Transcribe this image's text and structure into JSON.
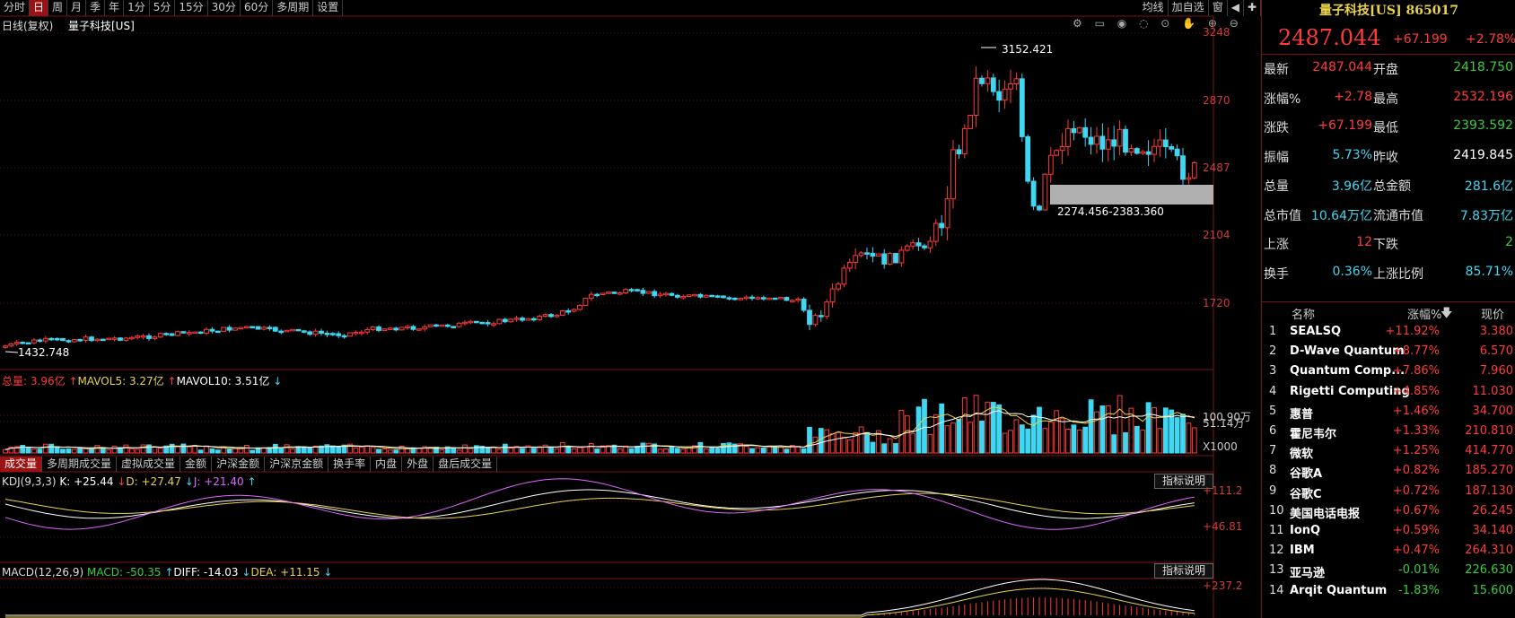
{
  "toolbar": {
    "periods": [
      "分时",
      "日",
      "周",
      "月",
      "季",
      "年",
      "1分",
      "5分",
      "15分",
      "30分",
      "60分",
      "多周期",
      "设置"
    ],
    "active": "日",
    "right_buttons": [
      "均线",
      "加自选",
      "窗"
    ]
  },
  "chart_header": {
    "mode": "日线(复权)",
    "title": "量子科技[US]"
  },
  "price_axis": [
    "3248",
    "2870",
    "2487",
    "2104",
    "1720"
  ],
  "annotations": {
    "high": "3152.421",
    "low": "1432.748",
    "range": "2274.456-2383.360"
  },
  "volume": {
    "label": "总量",
    "value": "3.96亿",
    "mavol5_label": "MAVOL5:",
    "mavol5": "3.27亿",
    "mavol10_label": "MAVOL10:",
    "mavol10": "3.51亿",
    "axis": [
      "100.90万",
      "51.14万",
      "X1000"
    ]
  },
  "volume_tabs": [
    "成交量",
    "多周期成交量",
    "虚拟成交量",
    "金额",
    "沪深金额",
    "沪深京金额",
    "换手率",
    "内盘",
    "外盘",
    "盘后成交量"
  ],
  "kdj": {
    "label": "KDJ(9,3,3)",
    "k": "K: +25.44",
    "d": "D: +27.47",
    "j": "J: +21.40",
    "axis": [
      "+111.2",
      "+46.81"
    ],
    "explain": "指标说明"
  },
  "macd": {
    "label": "MACD(12,26,9)",
    "macd": "MACD: -50.35",
    "diff": "DIFF: -14.03",
    "dea": "DEA: +11.15",
    "axis": [
      "+237.2"
    ],
    "explain": "指标说明"
  },
  "quote": {
    "title": "量子科技[US] 865017",
    "price": "2487.044",
    "change": "+67.199",
    "pct": "+2.78%",
    "rows": [
      {
        "l": "最新",
        "v": "2487.044",
        "l2": "开盘",
        "v2": "2418.750"
      },
      {
        "l": "涨幅%",
        "v": "+2.78",
        "l2": "最高",
        "v2": "2532.196"
      },
      {
        "l": "涨跌",
        "v": "+67.199",
        "l2": "最低",
        "v2": "2393.592"
      },
      {
        "l": "振幅",
        "v": "5.73%",
        "l2": "昨收",
        "v2": "2419.845"
      },
      {
        "l": "总量",
        "v": "3.96亿",
        "l2": "总金额",
        "v2": "281.6亿"
      },
      {
        "l": "总市值",
        "v": "10.64万亿",
        "l2": "流通市值",
        "v2": "7.83万亿"
      },
      {
        "l": "上涨",
        "v": "12",
        "l2": "下跌",
        "v2": "2"
      },
      {
        "l": "换手",
        "v": "0.36%",
        "l2": "上涨比例",
        "v2": "85.71%"
      }
    ]
  },
  "list": {
    "headers": [
      "名称",
      "涨幅%",
      "现价"
    ],
    "rows": [
      {
        "n": "1",
        "name": "SEALSQ",
        "pct": "+11.92%",
        "price": "3.380"
      },
      {
        "n": "2",
        "name": "D-Wave Quantum",
        "pct": "+8.77%",
        "price": "6.570"
      },
      {
        "n": "3",
        "name": "Quantum Comp...",
        "pct": "+7.86%",
        "price": "7.960"
      },
      {
        "n": "4",
        "name": "Rigetti Computing",
        "pct": "+4.85%",
        "price": "11.030"
      },
      {
        "n": "5",
        "name": "惠普",
        "pct": "+1.46%",
        "price": "34.700"
      },
      {
        "n": "6",
        "name": "霍尼韦尔",
        "pct": "+1.33%",
        "price": "210.810"
      },
      {
        "n": "7",
        "name": "微软",
        "pct": "+1.25%",
        "price": "414.770"
      },
      {
        "n": "8",
        "name": "谷歌A",
        "pct": "+0.82%",
        "price": "185.270"
      },
      {
        "n": "9",
        "name": "谷歌C",
        "pct": "+0.72%",
        "price": "187.130"
      },
      {
        "n": "10",
        "name": "美国电话电报",
        "pct": "+0.67%",
        "price": "26.245"
      },
      {
        "n": "11",
        "name": "IonQ",
        "pct": "+0.59%",
        "price": "34.140"
      },
      {
        "n": "12",
        "name": "IBM",
        "pct": "+0.47%",
        "price": "264.310"
      },
      {
        "n": "13",
        "name": "亚马逊",
        "pct": "-0.01%",
        "price": "226.630"
      },
      {
        "n": "14",
        "name": "Arqit Quantum",
        "pct": "-1.83%",
        "price": "15.600"
      }
    ]
  },
  "colors": {
    "up": "#ff3b3b",
    "down": "#3fd7f2",
    "grid": "#5a1010",
    "accent": "#9c1212"
  }
}
